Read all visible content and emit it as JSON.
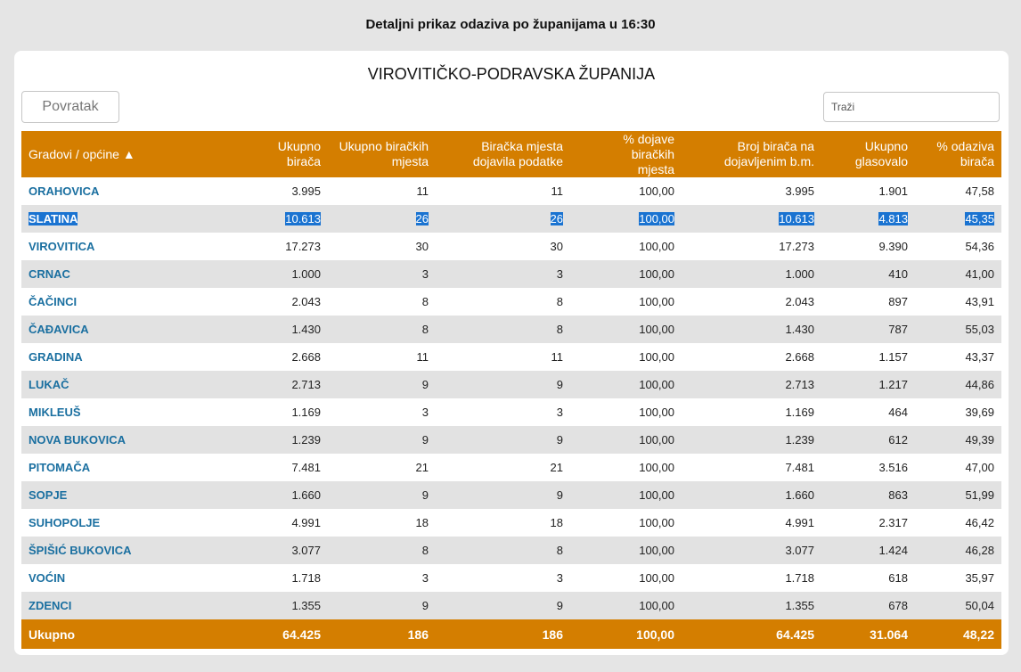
{
  "page_title": "Detaljni prikaz odaziva po županijama u 16:30",
  "county_title": "VIROVITIČKO-PODRAVSKA ŽUPANIJA",
  "back_button": "Povratak",
  "search": {
    "placeholder": "Traži",
    "value": ""
  },
  "columns": [
    "Gradovi / općine ▲",
    "Ukupno birača",
    "Ukupno biračkih mjesta",
    "Biračka mjesta dojavila podatke",
    "% dojave biračkih mjesta",
    "Broj birača na dojavljenim b.m.",
    "Ukupno glasovalo",
    "% odaziva birača"
  ],
  "rows": [
    [
      "ORAHOVICA",
      "3.995",
      "11",
      "11",
      "100,00",
      "3.995",
      "1.901",
      "47,58"
    ],
    [
      "SLATINA",
      "10.613",
      "26",
      "26",
      "100,00",
      "10.613",
      "4.813",
      "45,35"
    ],
    [
      "VIROVITICA",
      "17.273",
      "30",
      "30",
      "100,00",
      "17.273",
      "9.390",
      "54,36"
    ],
    [
      "CRNAC",
      "1.000",
      "3",
      "3",
      "100,00",
      "1.000",
      "410",
      "41,00"
    ],
    [
      "ČAČINCI",
      "2.043",
      "8",
      "8",
      "100,00",
      "2.043",
      "897",
      "43,91"
    ],
    [
      "ČAĐAVICA",
      "1.430",
      "8",
      "8",
      "100,00",
      "1.430",
      "787",
      "55,03"
    ],
    [
      "GRADINA",
      "2.668",
      "11",
      "11",
      "100,00",
      "2.668",
      "1.157",
      "43,37"
    ],
    [
      "LUKAČ",
      "2.713",
      "9",
      "9",
      "100,00",
      "2.713",
      "1.217",
      "44,86"
    ],
    [
      "MIKLEUŠ",
      "1.169",
      "3",
      "3",
      "100,00",
      "1.169",
      "464",
      "39,69"
    ],
    [
      "NOVA BUKOVICA",
      "1.239",
      "9",
      "9",
      "100,00",
      "1.239",
      "612",
      "49,39"
    ],
    [
      "PITOMAČA",
      "7.481",
      "21",
      "21",
      "100,00",
      "7.481",
      "3.516",
      "47,00"
    ],
    [
      "SOPJE",
      "1.660",
      "9",
      "9",
      "100,00",
      "1.660",
      "863",
      "51,99"
    ],
    [
      "SUHOPOLJE",
      "4.991",
      "18",
      "18",
      "100,00",
      "4.991",
      "2.317",
      "46,42"
    ],
    [
      "ŠPIŠIĆ BUKOVICA",
      "3.077",
      "8",
      "8",
      "100,00",
      "3.077",
      "1.424",
      "46,28"
    ],
    [
      "VOĆIN",
      "1.718",
      "3",
      "3",
      "100,00",
      "1.718",
      "618",
      "35,97"
    ],
    [
      "ZDENCI",
      "1.355",
      "9",
      "9",
      "100,00",
      "1.355",
      "678",
      "50,04"
    ]
  ],
  "selected_row": "SLATINA",
  "totals": [
    "Ukupno",
    "64.425",
    "186",
    "186",
    "100,00",
    "64.425",
    "31.064",
    "48,22"
  ],
  "colors": {
    "header": "#d47e00",
    "link": "#1a6fa0",
    "selection": "#1a73d1",
    "stripe": "#e2e2e2"
  }
}
